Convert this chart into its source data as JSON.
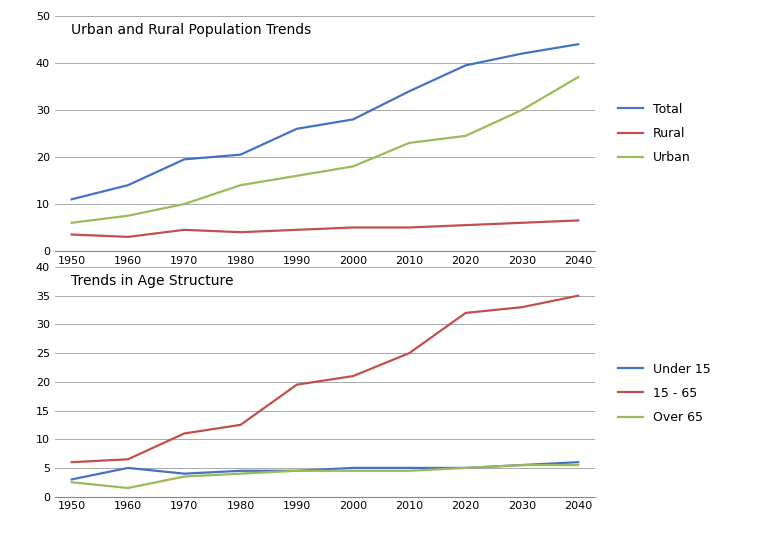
{
  "years": [
    1950,
    1960,
    1970,
    1980,
    1990,
    2000,
    2010,
    2020,
    2030,
    2040
  ],
  "chart1_title": "Urban and Rural Population Trends",
  "total": [
    11,
    14,
    19.5,
    20.5,
    26,
    28,
    34,
    39.5,
    42,
    44
  ],
  "rural": [
    3.5,
    3,
    4.5,
    4,
    4.5,
    5,
    5,
    5.5,
    6,
    6.5
  ],
  "urban": [
    6,
    7.5,
    10,
    14,
    16,
    18,
    23,
    24.5,
    30,
    37
  ],
  "chart1_colors": {
    "Total": "#4472C4",
    "Rural": "#C0504D",
    "Urban": "#9BBB59"
  },
  "chart1_ylim": [
    0,
    50
  ],
  "chart1_yticks": [
    0,
    10,
    20,
    30,
    40,
    50
  ],
  "chart2_title": "Trends in Age Structure",
  "under15": [
    3,
    5,
    4,
    4.5,
    4.5,
    5,
    5,
    5,
    5.5,
    6
  ],
  "age1565": [
    6,
    6.5,
    11,
    12.5,
    19.5,
    21,
    25,
    32,
    33,
    35
  ],
  "over65": [
    2.5,
    1.5,
    3.5,
    4,
    4.5,
    4.5,
    4.5,
    5,
    5.5,
    5.5
  ],
  "chart2_colors": {
    "Under 15": "#4472C4",
    "15 - 65": "#C0504D",
    "Over 65": "#9BBB59"
  },
  "chart2_ylim": [
    0,
    40
  ],
  "chart2_yticks": [
    0,
    5,
    10,
    15,
    20,
    25,
    30,
    35,
    40
  ],
  "background_color": "#FFFFFF",
  "plot_bg_color": "#FFFFFF",
  "grid_color": "#AAAAAA",
  "line_width": 1.6,
  "font_size_title": 10,
  "font_size_tick": 8,
  "font_size_legend": 9
}
